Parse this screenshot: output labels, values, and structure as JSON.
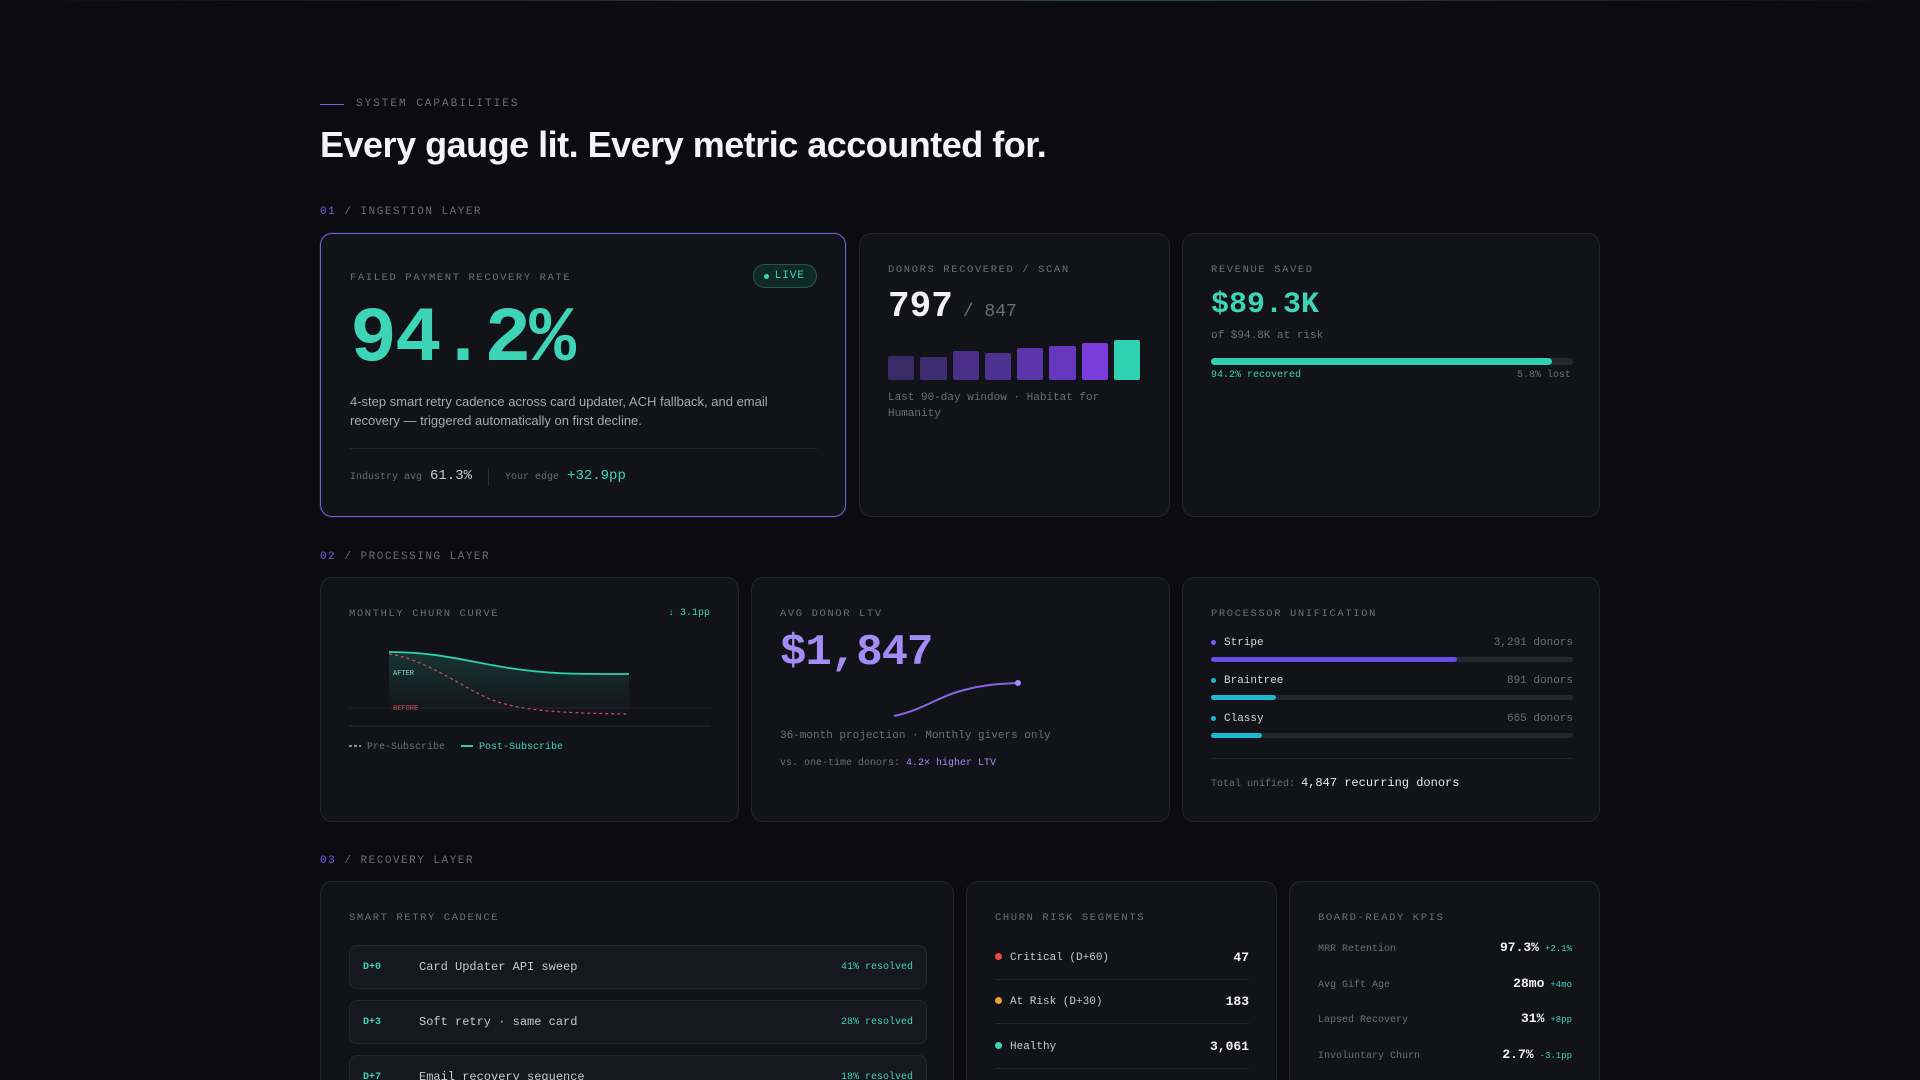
{
  "header": {
    "eyebrow": "SYSTEM CAPABILITIES",
    "headline": "Every gauge lit. Every metric accounted for."
  },
  "layers": [
    {
      "num": "01",
      "label": "/ INGESTION LAYER"
    },
    {
      "num": "02",
      "label": "/ PROCESSING LAYER"
    },
    {
      "num": "03",
      "label": "/ RECOVERY LAYER"
    }
  ],
  "recovery_rate": {
    "title": "FAILED PAYMENT RECOVERY RATE",
    "badge": "LIVE",
    "value": "94.2%",
    "description": "4-step smart retry cadence across card updater, ACH fallback, and email recovery — triggered automatically on first decline.",
    "industry_label": "Industry avg",
    "industry_value": "61.3%",
    "edge_label": "Your edge",
    "edge_value": "+32.9pp"
  },
  "donors_recovered": {
    "title": "DONORS RECOVERED / SCAN",
    "value": "797",
    "total": "/ 847",
    "bars": [
      0.52,
      0.5,
      0.62,
      0.58,
      0.7,
      0.73,
      0.8,
      0.86
    ],
    "bar_colors": [
      "#3a2a68",
      "#3d2c70",
      "#4a2f88",
      "#4d3190",
      "#5b35aa",
      "#6637bd",
      "#7a3ddc",
      "#2fd0b0"
    ],
    "caption": "Last 90-day window · Habitat for Humanity"
  },
  "revenue_saved": {
    "title": "REVENUE SAVED",
    "value": "$89.3K",
    "sub": "of $94.8K at risk",
    "progress": 0.942,
    "recovered_label": "94.2% recovered",
    "lost_label": "5.8% lost"
  },
  "churn_curve": {
    "title": "MONTHLY CHURN CURVE",
    "badge": "↓ 3.1pp",
    "after_label": "AFTER",
    "before_label": "BEFORE",
    "legend_pre": "Pre-Subscribe",
    "legend_post": "Post-Subscribe"
  },
  "ltv": {
    "title": "AVG DONOR LTV",
    "value": "$1,847",
    "sub": "36-month projection · Monthly givers only",
    "vs_label": "vs. one-time donors:",
    "vs_value": "4.2× higher LTV"
  },
  "processors": {
    "title": "PROCESSOR UNIFICATION",
    "items": [
      {
        "name": "Stripe",
        "count": "3,291 donors",
        "share": 0.68,
        "color": "#6b4de6"
      },
      {
        "name": "Braintree",
        "count": "891 donors",
        "share": 0.18,
        "color": "#20b8d0"
      },
      {
        "name": "Classy",
        "count": "665 donors",
        "share": 0.14,
        "color": "#20b8d0"
      }
    ],
    "total_label": "Total unified:",
    "total_value": "4,847 recurring donors"
  },
  "retry": {
    "title": "SMART RETRY CADENCE",
    "steps": [
      {
        "day": "D+0",
        "text": "Card Updater API sweep",
        "resolved": "41% resolved"
      },
      {
        "day": "D+3",
        "text": "Soft retry · same card",
        "resolved": "28% resolved"
      },
      {
        "day": "D+7",
        "text": "Email recovery sequence",
        "resolved": "18% resolved"
      }
    ]
  },
  "risk": {
    "title": "CHURN RISK SEGMENTS",
    "items": [
      {
        "label": "Critical (D+60)",
        "value": "47",
        "color": "#e5484d"
      },
      {
        "label": "At Risk (D+30)",
        "value": "183",
        "color": "#e9a23b"
      },
      {
        "label": "Healthy",
        "value": "3,061",
        "color": "#3ed4b8"
      }
    ]
  },
  "kpis": {
    "title": "BOARD-READY KPIS",
    "items": [
      {
        "label": "MRR Retention",
        "value": "97.3%",
        "delta": "+2.1%"
      },
      {
        "label": "Avg Gift Age",
        "value": "28mo",
        "delta": "+4mo"
      },
      {
        "label": "Lapsed Recovery",
        "value": "31%",
        "delta": "+8pp"
      },
      {
        "label": "Involuntary Churn",
        "value": "2.7%",
        "delta": "-3.1pp"
      }
    ]
  }
}
